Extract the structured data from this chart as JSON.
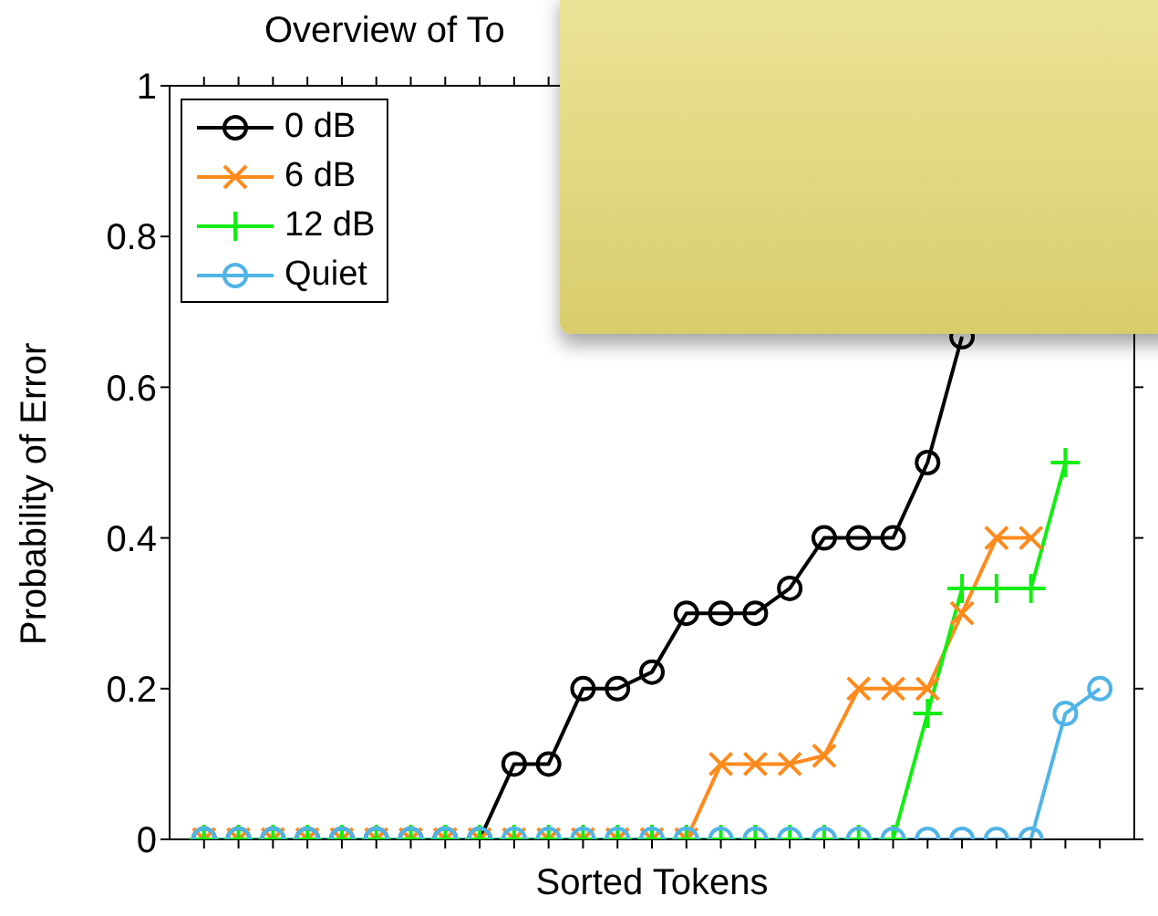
{
  "chart_data": {
    "type": "line",
    "title": "Overview of To",
    "xlabel": "Sorted Tokens",
    "ylabel": "Probability of Error",
    "categories": [
      null,
      null,
      null,
      null,
      null,
      null,
      null,
      null,
      null,
      null,
      null,
      null,
      null,
      null,
      null,
      null,
      null,
      null,
      null,
      null,
      null,
      null,
      null,
      null,
      null,
      null,
      null
    ],
    "series": [
      {
        "name": "0 dB",
        "color": "#000000",
        "marker": "circle",
        "values": [
          0,
          0,
          0,
          0,
          0,
          0,
          0,
          0,
          0,
          0.1,
          0.1,
          0.2,
          0.2,
          0.222,
          0.3,
          0.3,
          0.3,
          0.333,
          0.4,
          0.4,
          0.4,
          0.5,
          0.667,
          null,
          null,
          null,
          null
        ]
      },
      {
        "name": "6 dB",
        "color": "#ff8a1c",
        "marker": "cross",
        "values": [
          0,
          0,
          0,
          0,
          0,
          0,
          0,
          0,
          0,
          0,
          0,
          0,
          0,
          0,
          0,
          0.1,
          0.1,
          0.1,
          0.111,
          0.2,
          0.2,
          0.2,
          0.3,
          0.4,
          0.4,
          null,
          null
        ]
      },
      {
        "name": "12 dB",
        "color": "#11ee11",
        "marker": "plus",
        "values": [
          0,
          0,
          0,
          0,
          0,
          0,
          0,
          0,
          0,
          0,
          0,
          0,
          0,
          0,
          0,
          0,
          0,
          0,
          0,
          0,
          0,
          0.167,
          0.333,
          0.333,
          0.333,
          0.5,
          null
        ]
      },
      {
        "name": "Quiet",
        "color": "#4fb4e8",
        "marker": "circle",
        "values": [
          0,
          0,
          0,
          0,
          0,
          0,
          0,
          0,
          0,
          0,
          0,
          0,
          0,
          0,
          0,
          0,
          0,
          0,
          0,
          0,
          0,
          0,
          0,
          0,
          0,
          0.167,
          0.2
        ]
      }
    ],
    "ylim": [
      0,
      1
    ],
    "yticks": [
      0,
      0.2,
      0.4,
      0.6,
      0.8,
      1
    ],
    "grid": false,
    "legend": "top left",
    "tick_labels": "y",
    "line_style": "solid"
  }
}
